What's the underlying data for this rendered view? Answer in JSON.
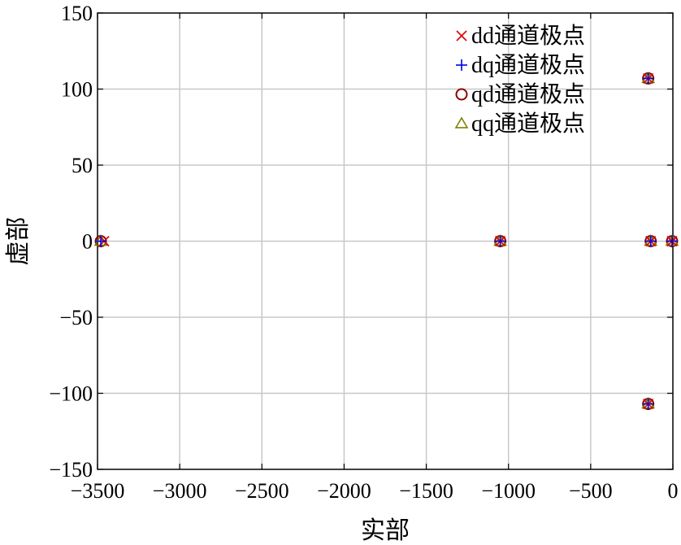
{
  "chart_data": {
    "type": "scatter",
    "title": "",
    "xlabel": "实部",
    "ylabel": "虚部",
    "xlim": [
      -3500,
      0
    ],
    "ylim": [
      -150,
      150
    ],
    "xticks": [
      -3500,
      -3000,
      -2500,
      -2000,
      -1500,
      -1000,
      -500,
      0
    ],
    "yticks": [
      -150,
      -100,
      -50,
      0,
      50,
      100,
      150
    ],
    "xtick_labels": [
      "−3500",
      "−3000",
      "−2500",
      "−2000",
      "−1500",
      "−1000",
      "−500",
      "0"
    ],
    "ytick_labels": [
      "−150",
      "−100",
      "−50",
      "0",
      "50",
      "100",
      "150"
    ],
    "grid": true,
    "legend_position": "top-right",
    "series": [
      {
        "name": "dd通道极点",
        "marker": "x",
        "color": "#e00000",
        "points": [
          [
            -3460,
            0
          ],
          [
            -1050,
            0
          ],
          [
            -150,
            107
          ],
          [
            -150,
            -107
          ],
          [
            -135,
            0
          ],
          [
            -5,
            0
          ]
        ]
      },
      {
        "name": "dq通道极点",
        "marker": "plus",
        "color": "#0000e0",
        "points": [
          [
            -3480,
            0
          ],
          [
            -1050,
            0
          ],
          [
            -150,
            107
          ],
          [
            -150,
            -107
          ],
          [
            -135,
            0
          ],
          [
            -5,
            0
          ]
        ]
      },
      {
        "name": "qd通道极点",
        "marker": "circle",
        "color": "#8b0000",
        "points": [
          [
            -3480,
            0
          ],
          [
            -1050,
            0
          ],
          [
            -150,
            107
          ],
          [
            -150,
            -107
          ],
          [
            -135,
            0
          ],
          [
            -5,
            0
          ]
        ]
      },
      {
        "name": "qq通道极点",
        "marker": "triangle",
        "color": "#808000",
        "points": [
          [
            -3480,
            0
          ],
          [
            -1050,
            0
          ],
          [
            -150,
            107
          ],
          [
            -150,
            -107
          ],
          [
            -135,
            0
          ],
          [
            -5,
            0
          ]
        ]
      }
    ]
  }
}
